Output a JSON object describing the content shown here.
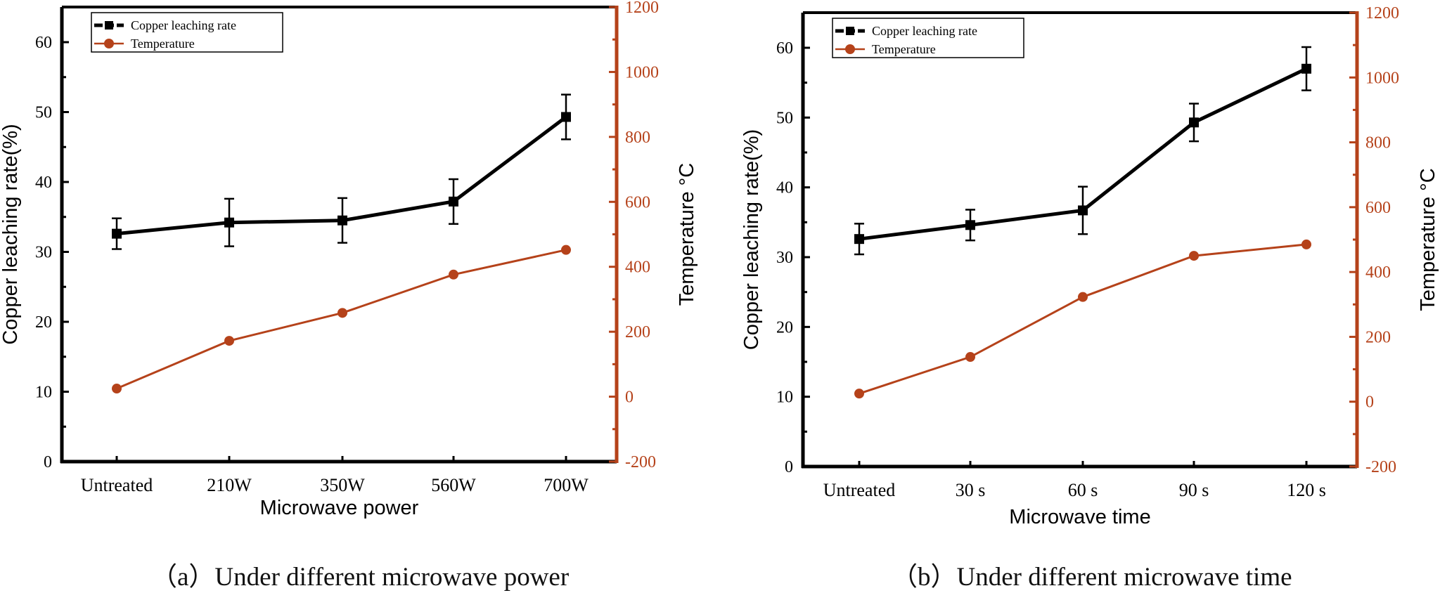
{
  "chart_data": [
    {
      "type": "line",
      "panel": "a",
      "caption": "（a）Under different microwave power",
      "xlabel": "Microwave power",
      "ylabel": "Copper leaching rate(%)",
      "y2label": "Temperature °C",
      "categories": [
        "Untreated",
        "210W",
        "350W",
        "560W",
        "700W"
      ],
      "ylim": [
        0,
        65
      ],
      "yticks": [
        0,
        10,
        20,
        30,
        40,
        50,
        60
      ],
      "y2lim": [
        -200,
        1200
      ],
      "y2ticks": [
        -200,
        0,
        200,
        400,
        600,
        800,
        1000,
        1200
      ],
      "legend": "top-left",
      "series": [
        {
          "name": "Copper leaching rate",
          "axis": "left",
          "marker": "square",
          "color": "#000000",
          "values": [
            32.6,
            34.2,
            34.5,
            37.2,
            49.3
          ],
          "errors": [
            2.2,
            3.4,
            3.2,
            3.2,
            3.2
          ]
        },
        {
          "name": "Temperature",
          "axis": "right",
          "marker": "circle",
          "color": "#b5421a",
          "values": [
            25,
            172,
            258,
            376,
            452
          ]
        }
      ]
    },
    {
      "type": "line",
      "panel": "b",
      "caption": "（b）Under different microwave time",
      "xlabel": "Microwave time",
      "ylabel": "Copper leaching rate(%)",
      "y2label": "Temperature °C",
      "categories": [
        "Untreated",
        "30 s",
        "60 s",
        "90 s",
        "120 s"
      ],
      "ylim": [
        0,
        65
      ],
      "yticks": [
        0,
        10,
        20,
        30,
        40,
        50,
        60
      ],
      "y2lim": [
        -200,
        1200
      ],
      "y2ticks": [
        -200,
        0,
        200,
        400,
        600,
        800,
        1000,
        1200
      ],
      "legend": "top-left",
      "series": [
        {
          "name": "Copper leaching rate",
          "axis": "left",
          "marker": "square",
          "color": "#000000",
          "values": [
            32.6,
            34.6,
            36.7,
            49.3,
            57.0
          ],
          "errors": [
            2.2,
            2.2,
            3.4,
            2.7,
            3.1
          ]
        },
        {
          "name": "Temperature",
          "axis": "right",
          "marker": "circle",
          "color": "#b5421a",
          "values": [
            25,
            138,
            323,
            450,
            485
          ]
        }
      ]
    }
  ]
}
